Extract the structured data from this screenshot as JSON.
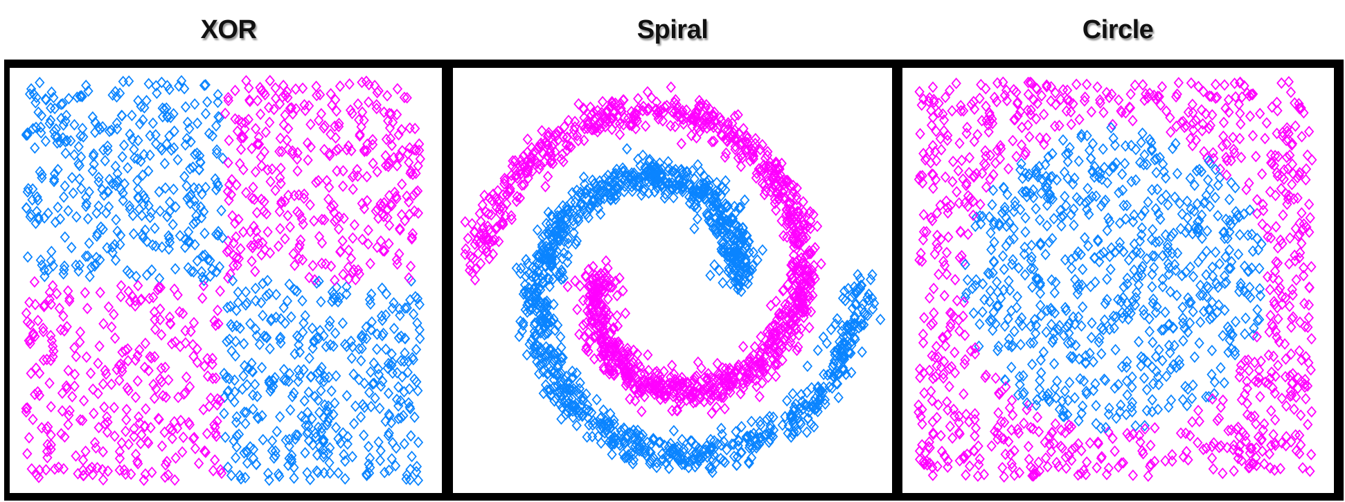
{
  "chart_data": [
    {
      "type": "scatter",
      "title": "XOR",
      "xlim": [
        -1,
        1
      ],
      "ylim": [
        -1,
        1
      ],
      "grid": false,
      "marker": "diamond-outline",
      "series": [
        {
          "color": "#0A84FF",
          "region": "x*y < 0 (top-left and bottom-right quadrants)"
        },
        {
          "color": "#FF00FF",
          "region": "x*y > 0 (top-right and bottom-left quadrants)"
        }
      ]
    },
    {
      "type": "scatter",
      "title": "Spiral",
      "grid": false,
      "marker": "diamond-outline",
      "series": [
        {
          "color": "#FF00FF",
          "region": "outer arm starting left, winding clockwise inward"
        },
        {
          "color": "#0A84FF",
          "region": "outer arm starting right, winding clockwise inward (interleaved)"
        }
      ]
    },
    {
      "type": "scatter",
      "title": "Circle",
      "xlim": [
        -1,
        1
      ],
      "ylim": [
        -1,
        1
      ],
      "grid": false,
      "marker": "diamond-outline",
      "series": [
        {
          "color": "#0A84FF",
          "region": "inside circle, radius ≈ 0.77"
        },
        {
          "color": "#FF00FF",
          "region": "outside circle"
        }
      ]
    }
  ]
}
